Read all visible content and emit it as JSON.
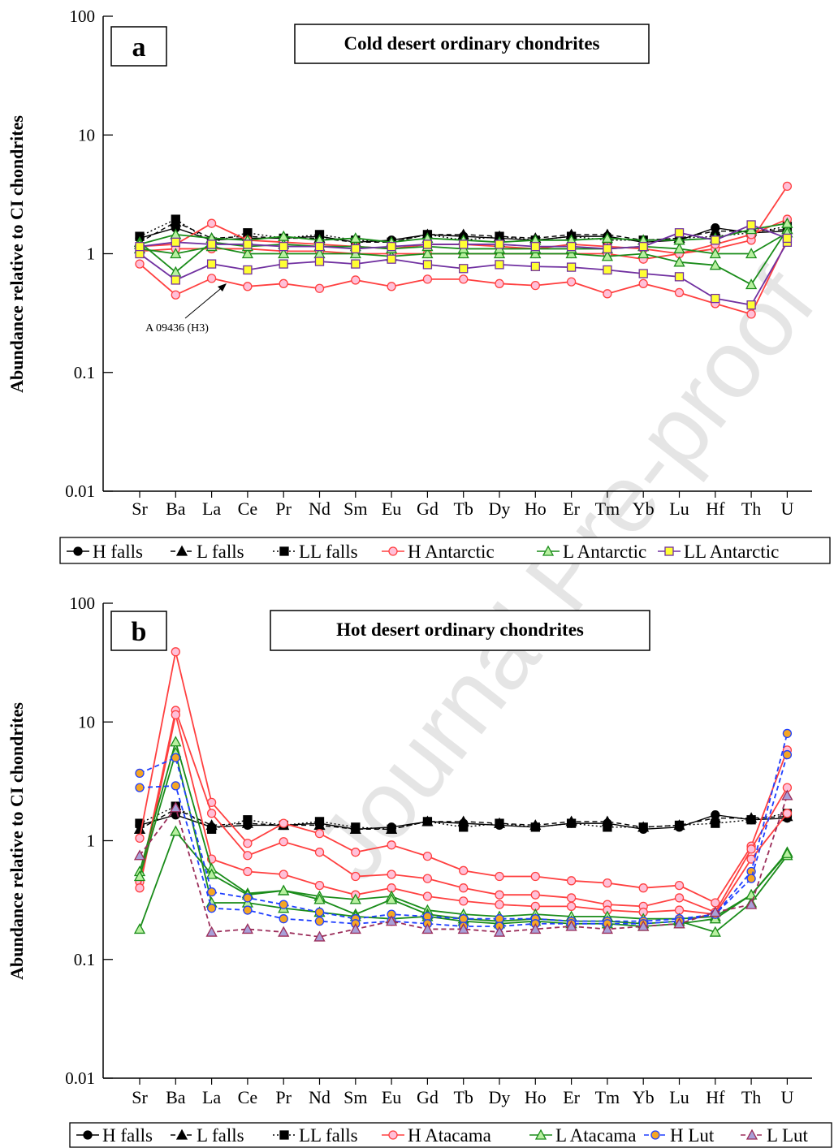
{
  "watermark": "Journal Pre-proof",
  "chart_data": [
    {
      "type": "line",
      "panel_label": "a",
      "title": "Cold desert ordinary chondrites",
      "ylabel": "Abundance relative to CI chondrites",
      "yscale": "log",
      "ylim": [
        0.01,
        100
      ],
      "yticks": [
        "0.01",
        "0.1",
        "1",
        "10",
        "100"
      ],
      "categories": [
        "Sr",
        "Ba",
        "La",
        "Ce",
        "Pr",
        "Nd",
        "Sm",
        "Eu",
        "Gd",
        "Tb",
        "Dy",
        "Ho",
        "Er",
        "Tm",
        "Yb",
        "Lu",
        "Hf",
        "Th",
        "U"
      ],
      "category_labels": [
        "Sr",
        "Ba",
        "La",
        "Ce",
        "Pr",
        "Nd",
        "Sm",
        "Eu",
        "Gd",
        "Tb",
        "Dy",
        "Ho",
        "Er",
        "Tm",
        "Yb",
        "Lu",
        "Hf",
        "Th",
        "U"
      ],
      "annotation": "A 09436 (H3)",
      "legend": [
        "H falls",
        "L falls",
        "LL falls",
        "H Antarctic",
        "L Antarctic",
        "LL Antarctic"
      ],
      "series": [
        {
          "name": "H falls",
          "color": "#000000",
          "marker": "circle",
          "dash": "solid",
          "values": [
            1.35,
            1.65,
            1.3,
            1.35,
            1.35,
            1.4,
            1.25,
            1.3,
            1.45,
            1.4,
            1.35,
            1.3,
            1.4,
            1.4,
            1.25,
            1.3,
            1.65,
            1.5,
            1.55
          ]
        },
        {
          "name": "L falls",
          "color": "#000000",
          "marker": "triangle",
          "dash": "dash",
          "values": [
            1.25,
            1.85,
            1.35,
            1.4,
            1.35,
            1.35,
            1.25,
            1.25,
            1.45,
            1.45,
            1.4,
            1.35,
            1.45,
            1.45,
            1.3,
            1.35,
            1.55,
            1.55,
            1.6
          ]
        },
        {
          "name": "LL falls",
          "color": "#000000",
          "marker": "square",
          "dash": "dot",
          "values": [
            1.4,
            1.95,
            1.25,
            1.5,
            1.35,
            1.45,
            1.3,
            1.25,
            1.45,
            1.3,
            1.4,
            1.3,
            1.4,
            1.3,
            1.3,
            1.35,
            1.4,
            1.5,
            1.7
          ]
        },
        {
          "name": "H Antarctic",
          "color": "#ff4040",
          "marker": "circle",
          "dash": "solid",
          "values": [
            0.82,
            0.45,
            0.62,
            0.53,
            0.56,
            0.51,
            0.6,
            0.53,
            0.61,
            0.61,
            0.56,
            0.54,
            0.58,
            0.46,
            0.56,
            0.47,
            0.38,
            0.31,
            1.3
          ]
        },
        {
          "name": "H Antarctic",
          "color": "#ff4040",
          "marker": "circle",
          "dash": "solid",
          "values": [
            1.15,
            1.2,
            1.8,
            1.3,
            1.25,
            1.2,
            1.15,
            1.1,
            1.2,
            1.2,
            1.15,
            1.1,
            1.2,
            1.15,
            1.1,
            1.0,
            1.1,
            1.3,
            3.7
          ]
        },
        {
          "name": "H Antarctic",
          "color": "#ff4040",
          "marker": "circle",
          "dash": "solid",
          "values": [
            1.05,
            1.1,
            1.1,
            1.1,
            1.05,
            1.05,
            1.0,
            1.0,
            1.0,
            1.0,
            1.0,
            1.0,
            1.0,
            1.0,
            0.9,
            1.0,
            1.2,
            1.45,
            1.95
          ]
        },
        {
          "name": "L Antarctic",
          "color": "#1a8c1a",
          "marker": "triangle",
          "dash": "solid",
          "values": [
            1.1,
            1.0,
            1.15,
            1.0,
            1.0,
            1.0,
            1.0,
            0.95,
            1.0,
            1.0,
            1.0,
            1.0,
            1.0,
            0.95,
            1.0,
            0.85,
            0.8,
            0.55,
            1.6
          ]
        },
        {
          "name": "L Antarctic",
          "color": "#1a8c1a",
          "marker": "triangle",
          "dash": "solid",
          "values": [
            1.25,
            0.7,
            1.25,
            1.15,
            1.2,
            1.15,
            1.15,
            1.1,
            1.15,
            1.1,
            1.1,
            1.1,
            1.1,
            1.1,
            1.15,
            1.1,
            1.0,
            1.0,
            1.5
          ]
        },
        {
          "name": "L Antarctic",
          "color": "#1a8c1a",
          "marker": "triangle",
          "dash": "solid",
          "values": [
            1.2,
            1.45,
            1.35,
            1.3,
            1.4,
            1.3,
            1.35,
            1.25,
            1.35,
            1.3,
            1.25,
            1.3,
            1.3,
            1.35,
            1.3,
            1.3,
            1.35,
            1.6,
            1.8
          ]
        },
        {
          "name": "LL Antarctic",
          "color": "#7030a0",
          "marker": "square",
          "fill": "#ffff33",
          "dash": "solid",
          "values": [
            1.0,
            0.6,
            0.82,
            0.73,
            0.82,
            0.86,
            0.82,
            0.9,
            0.81,
            0.75,
            0.81,
            0.78,
            0.77,
            0.73,
            0.68,
            0.64,
            0.42,
            0.37,
            1.25
          ]
        },
        {
          "name": "LL Antarctic",
          "color": "#7030a0",
          "marker": "square",
          "fill": "#ffff33",
          "dash": "solid",
          "values": [
            1.15,
            1.25,
            1.2,
            1.2,
            1.15,
            1.15,
            1.1,
            1.15,
            1.2,
            1.2,
            1.2,
            1.15,
            1.15,
            1.1,
            1.15,
            1.5,
            1.3,
            1.75,
            1.35
          ]
        }
      ]
    },
    {
      "type": "line",
      "panel_label": "b",
      "title": "Hot desert ordinary chondrites",
      "ylabel": "Abundance relative to CI chondrites",
      "yscale": "log",
      "ylim": [
        0.01,
        100
      ],
      "yticks": [
        "0.01",
        "0.1",
        "1",
        "10",
        "100"
      ],
      "categories": [
        "Sr",
        "Ba",
        "La",
        "Ce",
        "Pr",
        "Nd",
        "Sm",
        "Eu",
        "Gd",
        "Tb",
        "Dy",
        "Ho",
        "Er",
        "Tm",
        "Yb",
        "Lu",
        "Hf",
        "Th",
        "U"
      ],
      "category_labels": [
        "Sr",
        "Ba",
        "La",
        "Ce",
        "Pr",
        "Nd",
        "Sm",
        "Eu",
        "Gd",
        "Tb",
        "Dy",
        "Ho",
        "Er",
        "Tm",
        "Yb",
        "Lu",
        "Hf",
        "Th",
        "U"
      ],
      "legend": [
        "H falls",
        "L falls",
        "LL falls",
        "H Atacama",
        "L Atacama",
        "H Lut",
        "L Lut"
      ],
      "series": [
        {
          "name": "H falls",
          "color": "#000000",
          "marker": "circle",
          "dash": "solid",
          "values": [
            1.35,
            1.65,
            1.3,
            1.35,
            1.35,
            1.4,
            1.25,
            1.3,
            1.45,
            1.4,
            1.35,
            1.3,
            1.4,
            1.4,
            1.25,
            1.3,
            1.65,
            1.5,
            1.55
          ]
        },
        {
          "name": "L falls",
          "color": "#000000",
          "marker": "triangle",
          "dash": "dash",
          "values": [
            1.25,
            1.85,
            1.35,
            1.4,
            1.35,
            1.35,
            1.25,
            1.25,
            1.45,
            1.45,
            1.4,
            1.35,
            1.45,
            1.45,
            1.3,
            1.35,
            1.55,
            1.55,
            1.6
          ]
        },
        {
          "name": "LL falls",
          "color": "#000000",
          "marker": "square",
          "dash": "dot",
          "values": [
            1.4,
            1.95,
            1.25,
            1.5,
            1.35,
            1.45,
            1.3,
            1.25,
            1.45,
            1.3,
            1.4,
            1.3,
            1.4,
            1.3,
            1.3,
            1.35,
            1.4,
            1.5,
            1.7
          ]
        },
        {
          "name": "H Atacama",
          "color": "#ff4040",
          "marker": "circle",
          "dash": "solid",
          "values": [
            1.05,
            39,
            2.1,
            0.95,
            1.4,
            1.15,
            0.8,
            0.92,
            0.74,
            0.56,
            0.5,
            0.5,
            0.46,
            0.44,
            0.4,
            0.42,
            0.3,
            0.9,
            5.8
          ]
        },
        {
          "name": "H Atacama",
          "color": "#ff4040",
          "marker": "circle",
          "dash": "solid",
          "values": [
            0.45,
            12.5,
            1.7,
            0.75,
            0.98,
            0.8,
            0.5,
            0.52,
            0.48,
            0.4,
            0.35,
            0.35,
            0.33,
            0.29,
            0.28,
            0.33,
            0.25,
            0.85,
            2.8
          ]
        },
        {
          "name": "H Atacama",
          "color": "#ff4040",
          "marker": "circle",
          "dash": "solid",
          "values": [
            0.4,
            11.5,
            0.7,
            0.55,
            0.52,
            0.42,
            0.35,
            0.4,
            0.34,
            0.31,
            0.29,
            0.28,
            0.28,
            0.26,
            0.25,
            0.26,
            0.24,
            0.7,
            1.7
          ]
        },
        {
          "name": "L Atacama",
          "color": "#1a8c1a",
          "marker": "triangle",
          "dash": "solid",
          "values": [
            0.55,
            6.8,
            0.58,
            0.36,
            0.38,
            0.34,
            0.32,
            0.34,
            0.26,
            0.24,
            0.23,
            0.24,
            0.23,
            0.23,
            0.22,
            0.22,
            0.23,
            0.35,
            0.8
          ]
        },
        {
          "name": "L Atacama",
          "color": "#1a8c1a",
          "marker": "triangle",
          "dash": "solid",
          "values": [
            0.18,
            1.2,
            0.52,
            0.35,
            0.38,
            0.32,
            0.24,
            0.32,
            0.24,
            0.22,
            0.21,
            0.22,
            0.21,
            0.21,
            0.2,
            0.21,
            0.17,
            0.3,
            0.75
          ]
        },
        {
          "name": "L Atacama",
          "color": "#1a8c1a",
          "marker": "triangle",
          "dash": "solid",
          "values": [
            0.5,
            5.5,
            0.3,
            0.3,
            0.27,
            0.25,
            0.23,
            0.22,
            0.23,
            0.21,
            0.2,
            0.21,
            0.2,
            0.2,
            0.19,
            0.2,
            0.22,
            0.35,
            0.78
          ]
        },
        {
          "name": "H Lut",
          "color": "#1f3fff",
          "marker": "circle",
          "fill": "#f5a623",
          "dash": "dash",
          "values": [
            3.7,
            5.0,
            0.37,
            0.33,
            0.29,
            0.25,
            0.22,
            0.24,
            0.23,
            0.22,
            0.22,
            0.22,
            0.21,
            0.21,
            0.21,
            0.22,
            0.24,
            0.55,
            8.0
          ]
        },
        {
          "name": "H Lut",
          "color": "#1f3fff",
          "marker": "circle",
          "fill": "#f5a623",
          "dash": "dash",
          "values": [
            2.8,
            2.9,
            0.27,
            0.26,
            0.22,
            0.21,
            0.2,
            0.21,
            0.2,
            0.19,
            0.19,
            0.2,
            0.2,
            0.2,
            0.2,
            0.21,
            0.24,
            0.48,
            5.3
          ]
        },
        {
          "name": "L Lut",
          "color": "#9b2d5a",
          "marker": "triangle",
          "fill": "#a8a0d8",
          "dash": "dash",
          "values": [
            0.75,
            1.9,
            0.17,
            0.18,
            0.17,
            0.155,
            0.18,
            0.21,
            0.18,
            0.18,
            0.17,
            0.18,
            0.19,
            0.18,
            0.19,
            0.2,
            0.25,
            0.29,
            2.4
          ]
        }
      ]
    }
  ]
}
